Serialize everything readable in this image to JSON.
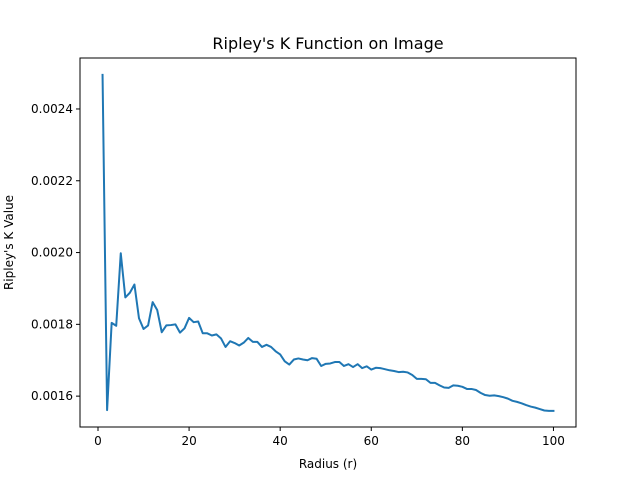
{
  "chart_data": {
    "type": "line",
    "title": "Ripley's K Function on Image",
    "xlabel": "Radius (r)",
    "ylabel": "Ripley's K Value",
    "xlim": [
      -3.95,
      104.95
    ],
    "ylim": [
      0.001514,
      0.002542
    ],
    "xticks": [
      0,
      20,
      40,
      60,
      80,
      100
    ],
    "xtick_labels": [
      "0",
      "20",
      "40",
      "60",
      "80",
      "100"
    ],
    "yticks": [
      0.0016,
      0.0018,
      0.002,
      0.0022,
      0.0024
    ],
    "ytick_labels": [
      "0.0016",
      "0.0018",
      "0.0020",
      "0.0022",
      "0.0024"
    ],
    "grid": false,
    "series": [
      {
        "name": "K(r)",
        "color": "#1f77b4",
        "x": [
          1,
          2,
          3,
          4,
          5,
          6,
          7,
          8,
          9,
          10,
          11,
          12,
          13,
          14,
          15,
          16,
          17,
          18,
          19,
          20,
          21,
          22,
          23,
          24,
          25,
          26,
          27,
          28,
          29,
          30,
          31,
          32,
          33,
          34,
          35,
          36,
          37,
          38,
          39,
          40,
          41,
          42,
          43,
          44,
          45,
          46,
          47,
          48,
          49,
          50,
          51,
          52,
          53,
          54,
          55,
          56,
          57,
          58,
          59,
          60,
          61,
          62,
          63,
          64,
          65,
          66,
          67,
          68,
          69,
          70,
          71,
          72,
          73,
          74,
          75,
          76,
          77,
          78,
          79,
          80,
          81,
          82,
          83,
          84,
          85,
          86,
          87,
          88,
          89,
          90,
          91,
          92,
          93,
          94,
          95,
          96,
          97,
          98,
          99,
          100
        ],
        "values": [
          0.002495,
          0.001561,
          0.001804,
          0.001796,
          0.001998,
          0.001875,
          0.001888,
          0.001911,
          0.001817,
          0.001787,
          0.001797,
          0.001862,
          0.00184,
          0.001778,
          0.001797,
          0.001798,
          0.0018,
          0.001777,
          0.001789,
          0.001818,
          0.001806,
          0.001808,
          0.001775,
          0.001775,
          0.001769,
          0.001772,
          0.001761,
          0.001737,
          0.001753,
          0.001748,
          0.001741,
          0.001749,
          0.001762,
          0.001751,
          0.001751,
          0.001737,
          0.001743,
          0.001737,
          0.001725,
          0.001716,
          0.001697,
          0.001688,
          0.001702,
          0.001705,
          0.001702,
          0.0017,
          0.001706,
          0.001704,
          0.001684,
          0.00169,
          0.001691,
          0.001695,
          0.001695,
          0.001684,
          0.001689,
          0.001681,
          0.001689,
          0.001678,
          0.001683,
          0.001674,
          0.001679,
          0.001678,
          0.001675,
          0.001672,
          0.00167,
          0.001667,
          0.001668,
          0.001666,
          0.001659,
          0.001648,
          0.001648,
          0.001647,
          0.001637,
          0.001637,
          0.00163,
          0.001624,
          0.001623,
          0.00163,
          0.001629,
          0.001626,
          0.00162,
          0.00162,
          0.001617,
          0.001609,
          0.001603,
          0.001601,
          0.001602,
          0.0016,
          0.001597,
          0.001593,
          0.001587,
          0.001584,
          0.00158,
          0.001575,
          0.001571,
          0.001568,
          0.001564,
          0.00156,
          0.001559,
          0.001559
        ]
      }
    ]
  }
}
